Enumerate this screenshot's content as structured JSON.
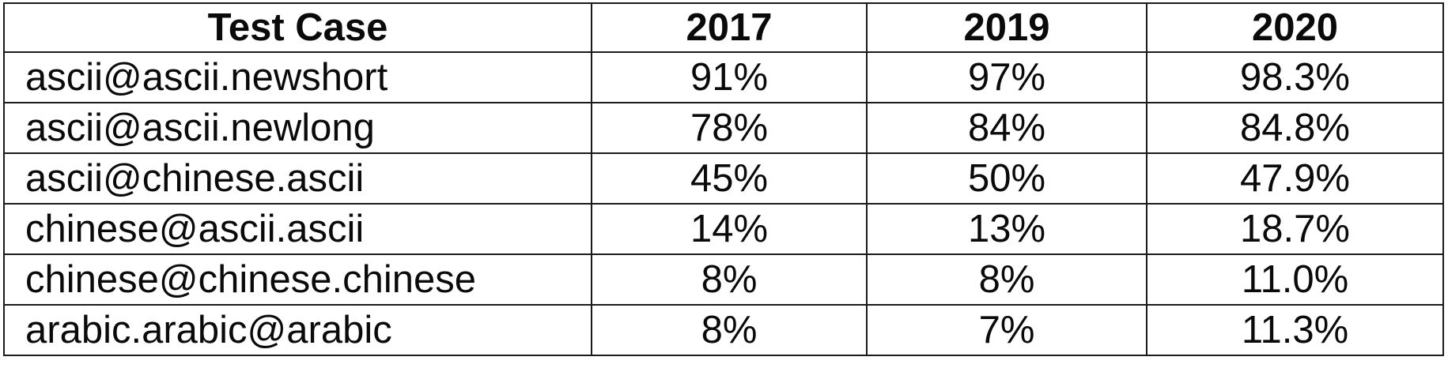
{
  "table": {
    "headers": [
      "Test Case",
      "2017",
      "2019",
      "2020"
    ],
    "rows": [
      {
        "case": "ascii@ascii.newshort",
        "v2017": "91%",
        "v2019": "97%",
        "v2020": "98.3%"
      },
      {
        "case": "ascii@ascii.newlong",
        "v2017": "78%",
        "v2019": "84%",
        "v2020": "84.8%"
      },
      {
        "case": "ascii@chinese.ascii",
        "v2017": "45%",
        "v2019": "50%",
        "v2020": "47.9%"
      },
      {
        "case": "chinese@ascii.ascii",
        "v2017": "14%",
        "v2019": "13%",
        "v2020": "18.7%"
      },
      {
        "case": "chinese@chinese.chinese",
        "v2017": "8%",
        "v2019": "8%",
        "v2020": "11.0%"
      },
      {
        "case": "arabic.arabic@arabic",
        "v2017": "8%",
        "v2019": "7%",
        "v2020": "11.3%"
      }
    ]
  }
}
